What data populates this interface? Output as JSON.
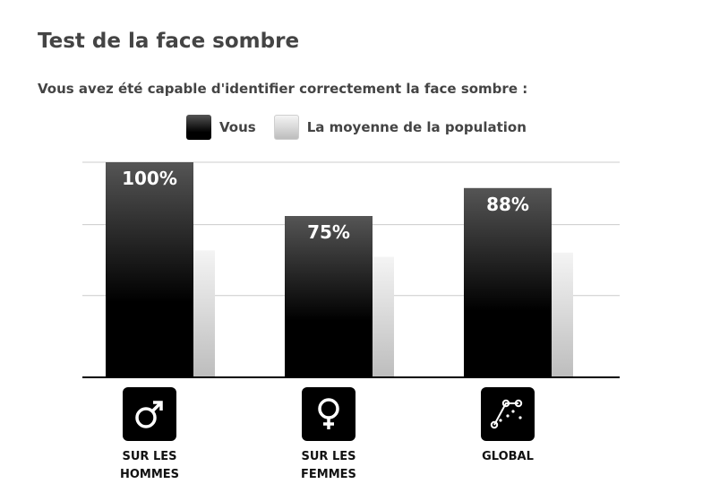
{
  "title": "Test de la face sombre",
  "subtitle": "Vous avez été capable d'identifier correctement la face sombre :",
  "legend": [
    {
      "label": "Vous",
      "style": "dark"
    },
    {
      "label": "La moyenne de la population",
      "style": "light"
    }
  ],
  "categories": [
    {
      "label": "SUR LES HOMMES",
      "icon": "male-icon"
    },
    {
      "label": "SUR LES FEMMES",
      "icon": "female-icon"
    },
    {
      "label": "GLOBAL",
      "icon": "scatter-plot-icon"
    }
  ],
  "colors": {
    "you_top": "#555555",
    "you_bottom": "#000000",
    "avg_top": "#f4f4f4",
    "avg_bottom": "#bdbdbd",
    "grid": "#cccccc",
    "baseline": "#000000"
  },
  "chart_data": {
    "type": "bar",
    "categories": [
      "SUR LES HOMMES",
      "SUR LES FEMMES",
      "GLOBAL"
    ],
    "series": [
      {
        "name": "Vous",
        "values": [
          100,
          75,
          88
        ],
        "labels": [
          "100%",
          "75%",
          "88%"
        ]
      },
      {
        "name": "La moyenne de la population",
        "values": [
          59,
          56,
          58
        ]
      }
    ],
    "ylim": [
      0,
      100
    ],
    "grid": true,
    "legend_position": "top"
  }
}
